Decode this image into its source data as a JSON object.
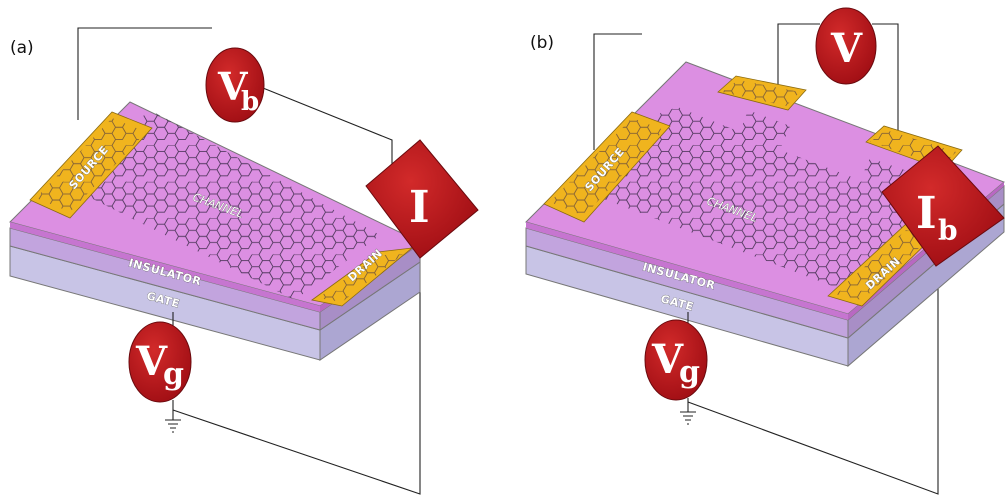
{
  "panels": [
    {
      "label": "(a)",
      "source_label": "SOURCE",
      "drain_label": "DRAIN",
      "channel_label": "CHANNEL",
      "insulator_label": "INSULATOR",
      "gate_label": "GATE",
      "meters": {
        "bias": {
          "main": "V",
          "sub": "b"
        },
        "current": {
          "main": "I",
          "sub": ""
        },
        "gate": {
          "main": "V",
          "sub": "g"
        }
      }
    },
    {
      "label": "(b)",
      "source_label": "SOURCE",
      "drain_label": "DRAIN",
      "channel_label": "CHANNEL",
      "insulator_label": "INSULATOR",
      "gate_label": "GATE",
      "meters": {
        "voltage": {
          "main": "V",
          "sub": ""
        },
        "current": {
          "main": "I",
          "sub": "b"
        },
        "gate": {
          "main": "V",
          "sub": "g"
        }
      }
    }
  ],
  "colors": {
    "channel": "#dc8fe2",
    "electrode": "#f0b41e",
    "insulator": "#c2a4de",
    "gate": "#c8c4e6",
    "meter": "#b8141c",
    "hexagon": "#3a2a48"
  }
}
